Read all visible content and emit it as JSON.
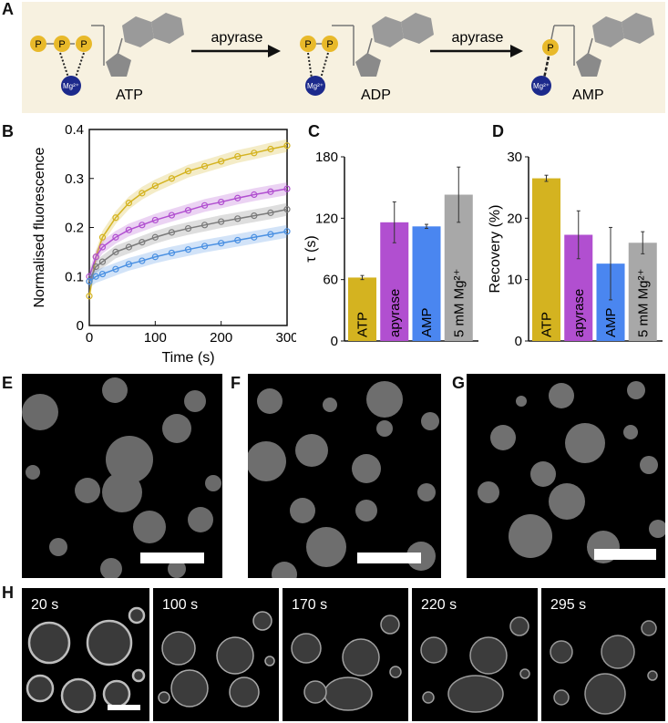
{
  "panels": {
    "A": "A",
    "B": "B",
    "C": "C",
    "D": "D",
    "E": "E",
    "F": "F",
    "G": "G",
    "H": "H"
  },
  "schematic": {
    "phosphate": "P",
    "mg": "Mg²⁺",
    "molecules": [
      "ATP",
      "ADP",
      "AMP"
    ],
    "enzyme_label": "apyrase",
    "colors": {
      "background": "#f7f1e0",
      "phosphate": "#e8b92a",
      "mg": "#1c2a8c",
      "base": "#9a9a9a",
      "arrow": "#111111"
    }
  },
  "chart_data": [
    {
      "id": "B",
      "type": "line",
      "xlabel": "Time (s)",
      "ylabel": "Normalised fluorescence",
      "xlim": [
        0,
        300
      ],
      "ylim": [
        0,
        0.4
      ],
      "xticks": [
        "0",
        "100",
        "200",
        "300"
      ],
      "yticks": [
        "0",
        "0.1",
        "0.2",
        "0.3",
        "0.4"
      ],
      "x": [
        0,
        10,
        20,
        40,
        60,
        80,
        100,
        125,
        150,
        175,
        200,
        225,
        250,
        275,
        300
      ],
      "series": [
        {
          "color": "#d4b320",
          "values": [
            0.06,
            0.14,
            0.18,
            0.22,
            0.25,
            0.27,
            0.285,
            0.3,
            0.315,
            0.325,
            0.335,
            0.345,
            0.352,
            0.36,
            0.367
          ]
        },
        {
          "color": "#b14fd0",
          "values": [
            0.1,
            0.14,
            0.16,
            0.18,
            0.195,
            0.205,
            0.215,
            0.225,
            0.235,
            0.245,
            0.252,
            0.26,
            0.267,
            0.273,
            0.279
          ]
        },
        {
          "color": "#7a7a7a",
          "values": [
            0.09,
            0.12,
            0.13,
            0.15,
            0.16,
            0.17,
            0.18,
            0.19,
            0.198,
            0.205,
            0.212,
            0.218,
            0.224,
            0.23,
            0.237
          ]
        },
        {
          "color": "#4a90e2",
          "values": [
            0.09,
            0.1,
            0.105,
            0.115,
            0.125,
            0.132,
            0.14,
            0.148,
            0.155,
            0.162,
            0.168,
            0.174,
            0.18,
            0.186,
            0.192
          ]
        }
      ]
    },
    {
      "id": "C",
      "type": "bar",
      "ylabel": "τ (s)",
      "ylim": [
        0,
        180
      ],
      "yticks": [
        "0",
        "60",
        "120",
        "180"
      ],
      "categories": [
        "ATP",
        "apyrase",
        "AMP",
        "5 mM Mg²⁺"
      ],
      "values": [
        62,
        116,
        112,
        143
      ],
      "errors": [
        2,
        20,
        2,
        27
      ],
      "colors": [
        "#d4b320",
        "#b14fd0",
        "#4a86f0",
        "#a8a8a8"
      ]
    },
    {
      "id": "D",
      "type": "bar",
      "ylabel": "Recovery (%)",
      "ylim": [
        0,
        30
      ],
      "yticks": [
        "0",
        "10",
        "20",
        "30"
      ],
      "categories": [
        "ATP",
        "apyrase",
        "AMP",
        "5 mM Mg²⁺"
      ],
      "values": [
        26.5,
        17.3,
        12.6,
        16
      ],
      "errors": [
        0.5,
        3.9,
        5.9,
        1.8
      ],
      "colors": [
        "#d4b320",
        "#b14fd0",
        "#4a86f0",
        "#a8a8a8"
      ]
    }
  ],
  "timelapse": [
    "20 s",
    "100 s",
    "170 s",
    "220 s",
    "295 s"
  ]
}
